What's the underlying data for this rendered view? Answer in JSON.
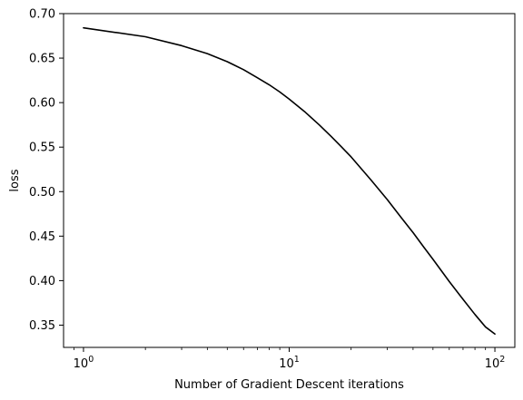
{
  "chart_data": {
    "type": "line",
    "title": "",
    "xlabel": "Number of Gradient Descent iterations",
    "ylabel": "loss",
    "xscale": "log",
    "xlim": [
      0.8,
      125
    ],
    "ylim": [
      0.325,
      0.7
    ],
    "grid": false,
    "legend": "none",
    "line_color": "#000000",
    "x_ticks": [
      {
        "value": 1,
        "base": "10",
        "exp": "0"
      },
      {
        "value": 10,
        "base": "10",
        "exp": "1"
      },
      {
        "value": 100,
        "base": "10",
        "exp": "2"
      }
    ],
    "y_ticks": [
      {
        "value": 0.35,
        "label": "0.35"
      },
      {
        "value": 0.4,
        "label": "0.40"
      },
      {
        "value": 0.45,
        "label": "0.45"
      },
      {
        "value": 0.5,
        "label": "0.50"
      },
      {
        "value": 0.55,
        "label": "0.55"
      },
      {
        "value": 0.6,
        "label": "0.60"
      },
      {
        "value": 0.65,
        "label": "0.65"
      },
      {
        "value": 0.7,
        "label": "0.70"
      }
    ],
    "series": [
      {
        "x": [
          1,
          2,
          3,
          4,
          5,
          6,
          7,
          8,
          9,
          10,
          12,
          14,
          16,
          18,
          20,
          25,
          30,
          35,
          40,
          45,
          50,
          60,
          70,
          80,
          90,
          100
        ],
        "values": [
          0.684,
          0.674,
          0.664,
          0.655,
          0.646,
          0.637,
          0.628,
          0.62,
          0.612,
          0.604,
          0.589,
          0.575,
          0.562,
          0.55,
          0.539,
          0.513,
          0.491,
          0.471,
          0.454,
          0.438,
          0.424,
          0.399,
          0.379,
          0.362,
          0.348,
          0.34
        ]
      }
    ]
  }
}
